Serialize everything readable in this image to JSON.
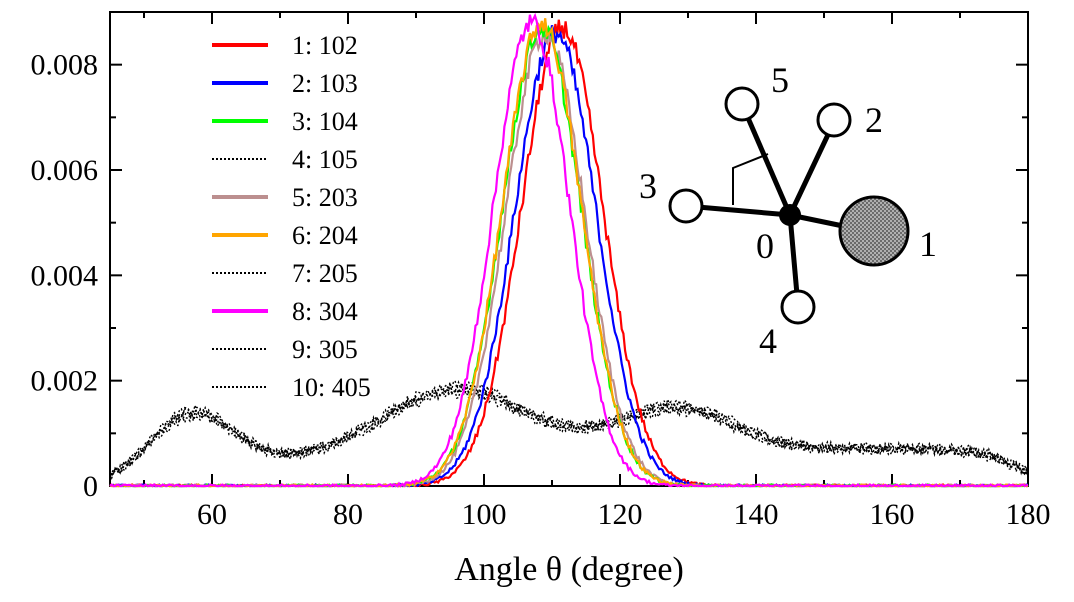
{
  "chart_data": {
    "type": "line",
    "title": "",
    "xlabel": "Angle θ (degree)",
    "ylabel": "",
    "xlim": [
      45,
      180
    ],
    "ylim": [
      0,
      0.009
    ],
    "x_ticks": [
      60,
      80,
      100,
      120,
      140,
      160,
      180
    ],
    "y_ticks": [
      0,
      0.002,
      0.004,
      0.006,
      0.008
    ],
    "y_tick_labels": [
      "0",
      "0.002",
      "0.004",
      "0.006",
      "0.008"
    ],
    "legend_position": "top-left",
    "series": [
      {
        "name": "1: 102",
        "color": "#ff0000",
        "style": "solid",
        "kind": "gauss",
        "mean": 111.5,
        "sigma": 6.0,
        "peak": 0.0087
      },
      {
        "name": "2: 103",
        "color": "#0000ff",
        "style": "solid",
        "kind": "gauss",
        "mean": 110.5,
        "sigma": 6.0,
        "peak": 0.0086
      },
      {
        "name": "3: 104",
        "color": "#00ff00",
        "style": "solid",
        "kind": "gauss",
        "mean": 108.5,
        "sigma": 5.8,
        "peak": 0.0087
      },
      {
        "name": "4: 105",
        "color": "#000000",
        "style": "dotted",
        "kind": "broad",
        "scale": 1.0
      },
      {
        "name": "5: 203",
        "color": "#bc8f8f",
        "style": "solid",
        "kind": "gauss",
        "mean": 109.0,
        "sigma": 5.8,
        "peak": 0.0086
      },
      {
        "name": "6: 204",
        "color": "#ffa500",
        "style": "solid",
        "kind": "gauss",
        "mean": 108.5,
        "sigma": 5.8,
        "peak": 0.0088
      },
      {
        "name": "7: 205",
        "color": "#000000",
        "style": "dotted",
        "kind": "broad",
        "scale": 1.03
      },
      {
        "name": "8: 304",
        "color": "#ff00ff",
        "style": "solid",
        "kind": "gauss",
        "mean": 107.0,
        "sigma": 5.6,
        "peak": 0.0088
      },
      {
        "name": "9: 305",
        "color": "#000000",
        "style": "dotted",
        "kind": "broad",
        "scale": 1.06
      },
      {
        "name": "10: 405",
        "color": "#000000",
        "style": "dotted",
        "kind": "broad",
        "scale": 0.97
      }
    ],
    "broad_components": [
      {
        "mean": 57,
        "sigma": 6,
        "height": 0.00095
      },
      {
        "mean": 96,
        "sigma": 11,
        "height": 0.00135
      },
      {
        "mean": 128,
        "sigma": 9,
        "height": 0.00095
      },
      {
        "mean": 160,
        "sigma": 18,
        "height": 0.00025
      }
    ],
    "broad_baseline": 0.00045,
    "inset": {
      "labels": [
        "0",
        "1",
        "2",
        "3",
        "4",
        "5"
      ]
    }
  }
}
